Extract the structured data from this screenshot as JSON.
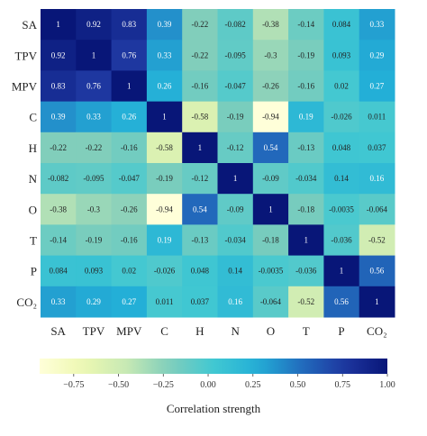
{
  "chart_data": {
    "type": "heatmap",
    "title": "",
    "xlabel": "",
    "ylabel": "",
    "row_labels": [
      "SA",
      "TPV",
      "MPV",
      "C",
      "H",
      "N",
      "O",
      "T",
      "P",
      "CO₂"
    ],
    "col_labels": [
      "SA",
      "TPV",
      "MPV",
      "C",
      "H",
      "N",
      "O",
      "T",
      "P",
      "CO₂"
    ],
    "values": [
      [
        1,
        0.92,
        0.83,
        0.39,
        -0.22,
        -0.082,
        -0.38,
        -0.14,
        0.084,
        0.33
      ],
      [
        0.92,
        1,
        0.76,
        0.33,
        -0.22,
        -0.095,
        -0.3,
        -0.19,
        0.093,
        0.29
      ],
      [
        0.83,
        0.76,
        1,
        0.26,
        -0.16,
        -0.047,
        -0.26,
        -0.16,
        0.02,
        0.27
      ],
      [
        0.39,
        0.33,
        0.26,
        1,
        -0.58,
        -0.19,
        -0.94,
        0.19,
        -0.026,
        0.011
      ],
      [
        -0.22,
        -0.22,
        -0.16,
        -0.58,
        1,
        -0.12,
        0.54,
        -0.13,
        0.048,
        0.037
      ],
      [
        -0.082,
        -0.095,
        -0.047,
        -0.19,
        -0.12,
        1,
        -0.09,
        -0.034,
        0.14,
        0.16
      ],
      [
        -0.38,
        -0.3,
        -0.26,
        -0.94,
        0.54,
        -0.09,
        1,
        -0.18,
        -0.0035,
        -0.064
      ],
      [
        -0.14,
        -0.19,
        -0.16,
        0.19,
        -0.13,
        -0.034,
        -0.18,
        1,
        -0.036,
        -0.52
      ],
      [
        0.084,
        0.093,
        0.02,
        -0.026,
        0.048,
        0.14,
        -0.0035,
        -0.036,
        1,
        0.56
      ],
      [
        0.33,
        0.29,
        0.27,
        0.011,
        0.037,
        0.16,
        -0.064,
        -0.52,
        0.56,
        1
      ]
    ],
    "colorbar": {
      "label": "Correlation strength",
      "range": [
        -0.94,
        1.0
      ],
      "ticks": [
        "−0.75",
        "−0.50",
        "−0.25",
        "0.00",
        "0.25",
        "0.50",
        "0.75",
        "1.00"
      ],
      "tick_values": [
        -0.75,
        -0.5,
        -0.25,
        0,
        0.25,
        0.5,
        0.75,
        1.0
      ],
      "colormap": "YlGnBu",
      "orientation": "horizontal"
    }
  }
}
